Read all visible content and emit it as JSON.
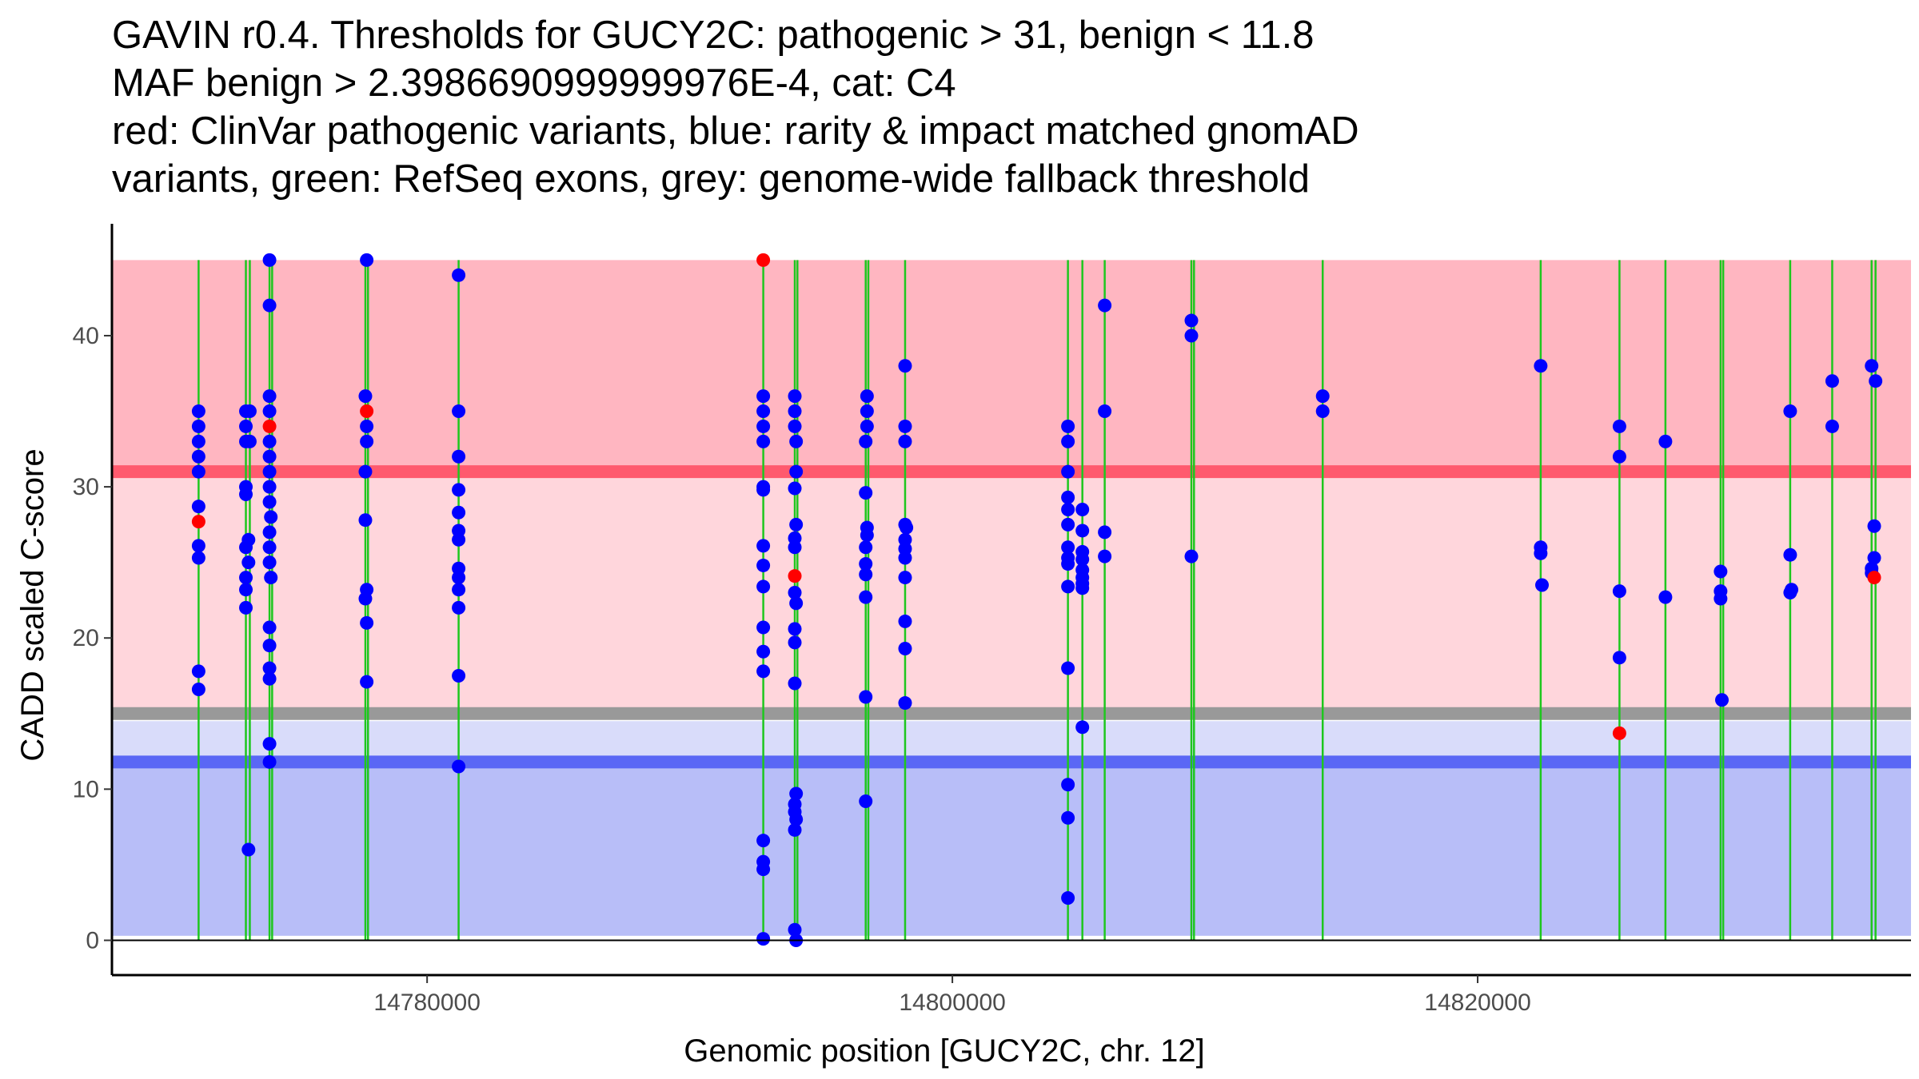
{
  "title_lines": [
    "GAVIN r0.4. Thresholds for GUCY2C: pathogenic > 31, benign < 11.8",
    "MAF benign > 2.3986690999999976E-4, cat: C4",
    "red: ClinVar pathogenic variants, blue: rarity & impact matched gnomAD",
    "variants, green: RefSeq exons, grey: genome-wide fallback threshold"
  ],
  "colors": {
    "pathogenic_zone": "#ffb6c1",
    "pathogenic_line": "#ff5a6e",
    "grey_zone": "#ffd6dc",
    "fallback_line": "#999999",
    "benign_zone_light": "#d9dcfa",
    "benign_line": "#5a67f5",
    "benign_zone": "#b8bef8",
    "exon": "#1ec71e",
    "gnomad": "#0000ff",
    "clinvar": "#ff0000"
  },
  "chart_data": {
    "type": "scatter",
    "title": "GAVIN r0.4. Thresholds for GUCY2C: pathogenic > 31, benign < 11.8",
    "xlabel": "Genomic position [GUCY2C, chr. 12]",
    "ylabel": "CADD scaled C-score",
    "xlim": [
      14768000,
      14836500
    ],
    "ylim": [
      -2.3,
      47.4
    ],
    "xticks": [
      14780000,
      14800000,
      14820000
    ],
    "xtick_labels": [
      "14780000",
      "14800000",
      "14820000"
    ],
    "yticks": [
      0,
      10,
      20,
      30,
      40
    ],
    "ytick_labels": [
      "0",
      "10",
      "20",
      "30",
      "40"
    ],
    "grid": false,
    "thresholds": {
      "pathogenic": 31,
      "benign": 11.8,
      "genome_wide_fallback": 15,
      "pathogenic_zone_top": 45,
      "grey_zone_bottom": 14.5,
      "benign_zone_bottom": 0.3
    },
    "exon_positions": [
      14771300,
      14773100,
      14773250,
      14774000,
      14774100,
      14777650,
      14777750,
      14781200,
      14792800,
      14794000,
      14794100,
      14796700,
      14796800,
      14798200,
      14804400,
      14804950,
      14805800,
      14809100,
      14809200,
      14814100,
      14822400,
      14825400,
      14827150,
      14829250,
      14829350,
      14831900,
      14833500,
      14835000,
      14835150
    ],
    "series": [
      {
        "name": "gnomAD (rarity & impact matched)",
        "color": "#0000ff",
        "points": [
          [
            14771300,
            35
          ],
          [
            14771300,
            34
          ],
          [
            14771300,
            33
          ],
          [
            14771300,
            32
          ],
          [
            14771300,
            31
          ],
          [
            14771300,
            28.7
          ],
          [
            14771300,
            26.1
          ],
          [
            14771300,
            25.3
          ],
          [
            14771300,
            17.8
          ],
          [
            14771300,
            16.6
          ],
          [
            14773100,
            35
          ],
          [
            14773250,
            35
          ],
          [
            14773100,
            34
          ],
          [
            14773100,
            33
          ],
          [
            14773250,
            33
          ],
          [
            14773100,
            30
          ],
          [
            14773100,
            29.5
          ],
          [
            14773200,
            26.5
          ],
          [
            14773100,
            26
          ],
          [
            14773200,
            25
          ],
          [
            14773100,
            24
          ],
          [
            14773100,
            23.2
          ],
          [
            14773100,
            22
          ],
          [
            14773200,
            6
          ],
          [
            14774000,
            45
          ],
          [
            14774000,
            42
          ],
          [
            14774000,
            36
          ],
          [
            14774000,
            35
          ],
          [
            14774000,
            33
          ],
          [
            14774000,
            32
          ],
          [
            14774000,
            31
          ],
          [
            14774000,
            30
          ],
          [
            14774000,
            29
          ],
          [
            14774050,
            28
          ],
          [
            14774000,
            27
          ],
          [
            14774000,
            26
          ],
          [
            14774000,
            25
          ],
          [
            14774050,
            24
          ],
          [
            14774000,
            20.7
          ],
          [
            14774000,
            19.5
          ],
          [
            14774000,
            18
          ],
          [
            14774000,
            17.3
          ],
          [
            14774000,
            13
          ],
          [
            14774000,
            11.8
          ],
          [
            14777700,
            45
          ],
          [
            14777650,
            36
          ],
          [
            14777700,
            34
          ],
          [
            14777700,
            33
          ],
          [
            14777650,
            31
          ],
          [
            14777650,
            27.8
          ],
          [
            14777700,
            23.2
          ],
          [
            14777650,
            22.6
          ],
          [
            14777700,
            21
          ],
          [
            14777700,
            17.1
          ],
          [
            14781200,
            44
          ],
          [
            14781200,
            35
          ],
          [
            14781200,
            32
          ],
          [
            14781200,
            29.8
          ],
          [
            14781200,
            28.3
          ],
          [
            14781200,
            27.1
          ],
          [
            14781200,
            26.5
          ],
          [
            14781200,
            24.6
          ],
          [
            14781200,
            24
          ],
          [
            14781200,
            23.2
          ],
          [
            14781200,
            22
          ],
          [
            14781200,
            17.5
          ],
          [
            14781200,
            11.5
          ],
          [
            14792800,
            36
          ],
          [
            14792800,
            35
          ],
          [
            14792800,
            34
          ],
          [
            14792800,
            33
          ],
          [
            14792800,
            30
          ],
          [
            14792800,
            29.8
          ],
          [
            14792800,
            26.1
          ],
          [
            14792800,
            24.8
          ],
          [
            14792800,
            23.4
          ],
          [
            14792800,
            20.7
          ],
          [
            14792800,
            19.1
          ],
          [
            14792800,
            17.8
          ],
          [
            14792800,
            6.6
          ],
          [
            14792800,
            5.2
          ],
          [
            14792800,
            4.7
          ],
          [
            14792800,
            0.1
          ],
          [
            14794000,
            36
          ],
          [
            14794000,
            35
          ],
          [
            14794000,
            34
          ],
          [
            14794050,
            33
          ],
          [
            14794050,
            31
          ],
          [
            14794000,
            29.9
          ],
          [
            14794050,
            27.5
          ],
          [
            14794000,
            26.6
          ],
          [
            14794000,
            26
          ],
          [
            14794000,
            23
          ],
          [
            14794050,
            22.3
          ],
          [
            14794000,
            20.6
          ],
          [
            14794000,
            19.7
          ],
          [
            14794000,
            17
          ],
          [
            14794050,
            9.7
          ],
          [
            14794000,
            9
          ],
          [
            14794000,
            8.5
          ],
          [
            14794050,
            8
          ],
          [
            14794000,
            7.3
          ],
          [
            14794000,
            0.7
          ],
          [
            14794050,
            0
          ],
          [
            14796750,
            36
          ],
          [
            14796750,
            35
          ],
          [
            14796750,
            34
          ],
          [
            14796700,
            33
          ],
          [
            14796700,
            29.6
          ],
          [
            14796750,
            27.3
          ],
          [
            14796750,
            26.8
          ],
          [
            14796700,
            26
          ],
          [
            14796700,
            24.9
          ],
          [
            14796700,
            24.2
          ],
          [
            14796700,
            22.7
          ],
          [
            14796700,
            16.1
          ],
          [
            14796700,
            9.2
          ],
          [
            14798200,
            38
          ],
          [
            14798200,
            34
          ],
          [
            14798200,
            33
          ],
          [
            14798200,
            27.5
          ],
          [
            14798250,
            27.3
          ],
          [
            14798200,
            26.5
          ],
          [
            14798200,
            25.9
          ],
          [
            14798200,
            25.3
          ],
          [
            14798200,
            24
          ],
          [
            14798200,
            21.1
          ],
          [
            14798200,
            19.3
          ],
          [
            14798200,
            15.7
          ],
          [
            14804400,
            34
          ],
          [
            14804400,
            33
          ],
          [
            14804400,
            31
          ],
          [
            14804400,
            29.3
          ],
          [
            14804400,
            28.5
          ],
          [
            14804400,
            27.5
          ],
          [
            14804400,
            26
          ],
          [
            14804400,
            25.3
          ],
          [
            14804400,
            24.9
          ],
          [
            14804400,
            23.4
          ],
          [
            14804400,
            18
          ],
          [
            14804400,
            10.3
          ],
          [
            14804400,
            8.1
          ],
          [
            14804400,
            2.8
          ],
          [
            14804950,
            28.5
          ],
          [
            14804950,
            27.1
          ],
          [
            14804950,
            25.7
          ],
          [
            14804950,
            25.2
          ],
          [
            14804950,
            24.5
          ],
          [
            14804950,
            24
          ],
          [
            14804950,
            23.6
          ],
          [
            14804950,
            23.3
          ],
          [
            14804950,
            14.1
          ],
          [
            14805800,
            42
          ],
          [
            14805800,
            35
          ],
          [
            14805800,
            27
          ],
          [
            14805800,
            25.4
          ],
          [
            14809100,
            41
          ],
          [
            14809100,
            40
          ],
          [
            14809100,
            25.4
          ],
          [
            14814100,
            36
          ],
          [
            14814100,
            35
          ],
          [
            14822400,
            38
          ],
          [
            14822400,
            26
          ],
          [
            14822400,
            25.6
          ],
          [
            14822450,
            23.5
          ],
          [
            14825400,
            34
          ],
          [
            14825400,
            32
          ],
          [
            14825400,
            23.1
          ],
          [
            14825400,
            18.7
          ],
          [
            14827150,
            33
          ],
          [
            14827150,
            22.7
          ],
          [
            14829250,
            24.4
          ],
          [
            14829250,
            23.1
          ],
          [
            14829250,
            22.6
          ],
          [
            14829300,
            15.9
          ],
          [
            14831900,
            35
          ],
          [
            14831900,
            25.5
          ],
          [
            14831950,
            23.2
          ],
          [
            14831900,
            23
          ],
          [
            14833500,
            37
          ],
          [
            14833500,
            34
          ],
          [
            14835000,
            38
          ],
          [
            14835150,
            37
          ],
          [
            14835100,
            27.4
          ],
          [
            14835100,
            25.3
          ],
          [
            14835000,
            24.6
          ],
          [
            14835000,
            24.3
          ]
        ]
      },
      {
        "name": "ClinVar pathogenic",
        "color": "#ff0000",
        "points": [
          [
            14771300,
            27.7
          ],
          [
            14774000,
            34
          ],
          [
            14777700,
            35
          ],
          [
            14792800,
            45
          ],
          [
            14794000,
            24.1
          ],
          [
            14825400,
            13.7
          ],
          [
            14835100,
            24
          ]
        ]
      }
    ]
  }
}
